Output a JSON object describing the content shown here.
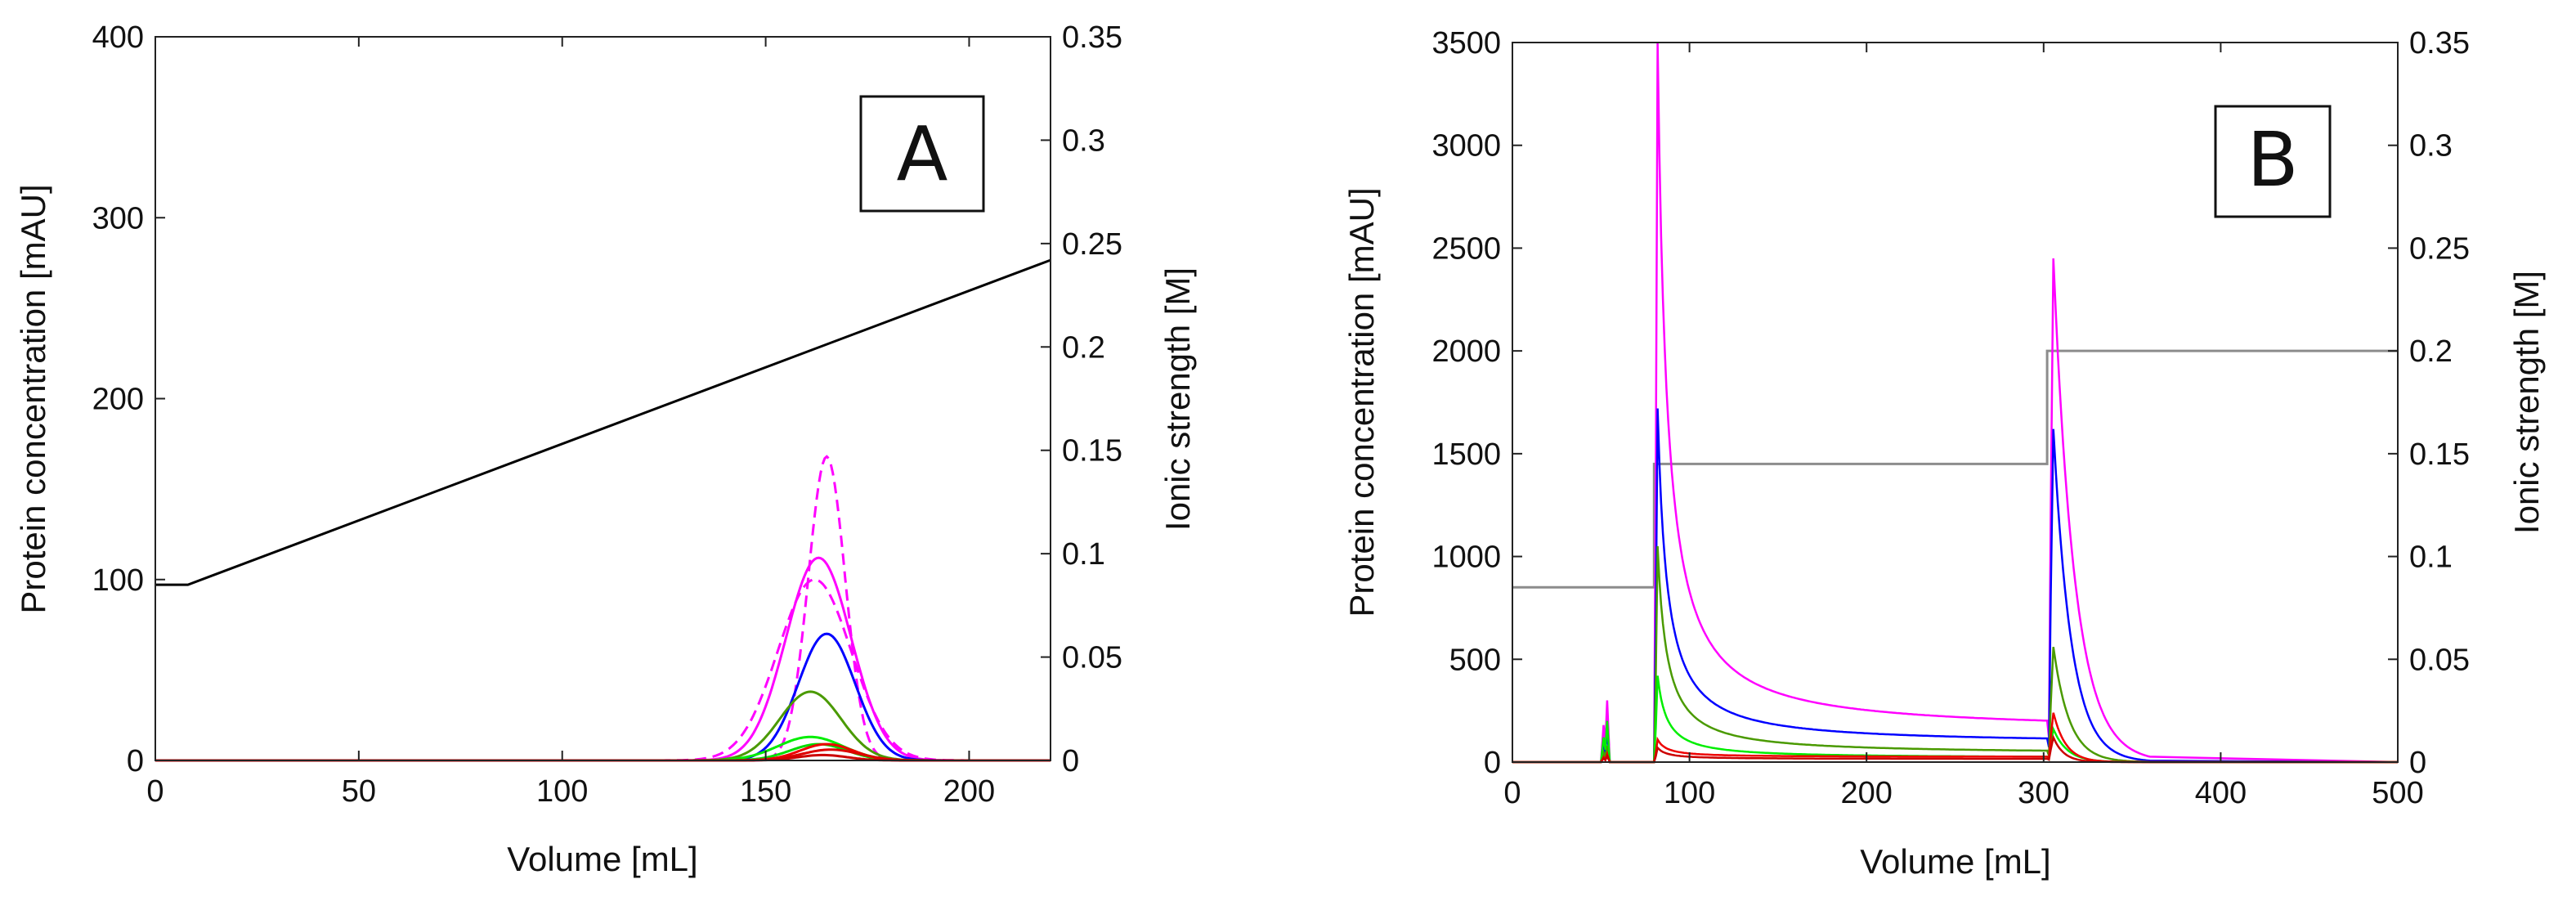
{
  "chart_data": [
    {
      "type": "line",
      "panel": "A",
      "xlabel": "Volume [mL]",
      "ylabel": "Protein concentration [mAU]",
      "y2label": "Ionic strength [M]",
      "xlim": [
        0,
        220
      ],
      "ylim": [
        0,
        400
      ],
      "y2lim": [
        0,
        0.35
      ],
      "xticks": [
        "0",
        "50",
        "100",
        "150",
        "200"
      ],
      "yticks": [
        "0",
        "100",
        "200",
        "300",
        "400"
      ],
      "y2ticks": [
        "0",
        "0.05",
        "0.1",
        "0.15",
        "0.2",
        "0.25",
        "0.3",
        "0.35"
      ],
      "ionic_strength": {
        "color": "#000000",
        "points": [
          [
            0,
            0.085
          ],
          [
            8,
            0.085
          ],
          [
            220,
            0.242
          ]
        ]
      },
      "peaks": [
        {
          "name": "magenta dashed",
          "color": "#ff00ff",
          "dashed": true,
          "center": 165,
          "height": 168,
          "width": 4.5
        },
        {
          "name": "magenta",
          "color": "#ff00ff",
          "dashed": false,
          "center": 163,
          "height": 112,
          "width": 8
        },
        {
          "name": "magenta dashed wide",
          "color": "#ff00ff",
          "dashed": true,
          "center": 162,
          "height": 100,
          "width": 9
        },
        {
          "name": "blue",
          "color": "#0000ff",
          "dashed": false,
          "center": 165,
          "height": 70,
          "width": 7
        },
        {
          "name": "olive green",
          "color": "#4a9a00",
          "dashed": false,
          "center": 161,
          "height": 38,
          "width": 7.5
        },
        {
          "name": "bright green",
          "color": "#00ee00",
          "dashed": false,
          "center": 161,
          "height": 13,
          "width": 8
        },
        {
          "name": "green 2",
          "color": "#00dd00",
          "dashed": false,
          "center": 163,
          "height": 9,
          "width": 7
        },
        {
          "name": "red",
          "color": "#ee0000",
          "dashed": false,
          "center": 165,
          "height": 9,
          "width": 6.5
        },
        {
          "name": "red 2",
          "color": "#dd0000",
          "dashed": false,
          "center": 166,
          "height": 6,
          "width": 7
        },
        {
          "name": "red 3",
          "color": "#cc0000",
          "dashed": false,
          "center": 164,
          "height": 3,
          "width": 6
        }
      ]
    },
    {
      "type": "line",
      "panel": "B",
      "xlabel": "Volume [mL]",
      "ylabel": "Protein concentration [mAU]",
      "y2label": "Ionic strength [M]",
      "xlim": [
        0,
        500
      ],
      "ylim": [
        0,
        3500
      ],
      "y2lim": [
        0,
        0.35
      ],
      "xticks": [
        "0",
        "100",
        "200",
        "300",
        "400",
        "500"
      ],
      "yticks": [
        "0",
        "500",
        "1000",
        "1500",
        "2000",
        "2500",
        "3000",
        "3500"
      ],
      "y2ticks": [
        "0",
        "0.05",
        "0.1",
        "0.15",
        "0.2",
        "0.25",
        "0.3",
        "0.35"
      ],
      "ionic_strength": {
        "color": "#8c8c8c",
        "points": [
          [
            0,
            0.085
          ],
          [
            80,
            0.085
          ],
          [
            80,
            0.145
          ],
          [
            302,
            0.145
          ],
          [
            302,
            0.2
          ],
          [
            500,
            0.2
          ]
        ]
      },
      "elutions": [
        {
          "name": "magenta",
          "color": "#ff00ff",
          "spike1": 300,
          "peak2": 3500,
          "tail_end": 150,
          "peak3": 2450,
          "decay3": 12
        },
        {
          "name": "blue",
          "color": "#0000ff",
          "spike1": 150,
          "peak2": 1720,
          "tail_end": 90,
          "peak3": 1620,
          "decay3": 10
        },
        {
          "name": "olive green",
          "color": "#4a9a00",
          "spike1": 80,
          "peak2": 1050,
          "tail_end": 40,
          "peak3": 560,
          "decay3": 9
        },
        {
          "name": "bright green",
          "color": "#00ee00",
          "spike1": 200,
          "peak2": 420,
          "tail_end": 20,
          "peak3": 160,
          "decay3": 8
        },
        {
          "name": "red",
          "color": "#ee0000",
          "spike1": 40,
          "peak2": 110,
          "tail_end": 25,
          "peak3": 240,
          "decay3": 7
        },
        {
          "name": "red 2",
          "color": "#cc0000",
          "spike1": 30,
          "peak2": 70,
          "tail_end": 15,
          "peak3": 120,
          "decay3": 6
        }
      ]
    }
  ]
}
